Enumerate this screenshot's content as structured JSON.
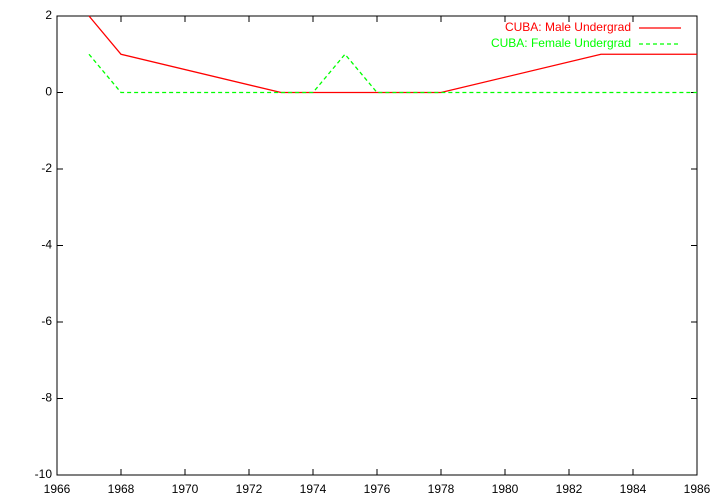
{
  "chart_data": {
    "type": "line",
    "x": [
      1967,
      1968,
      1973,
      1974,
      1975,
      1976,
      1977,
      1978,
      1983,
      1984,
      1985,
      1986
    ],
    "series": [
      {
        "name": "CUBA: Male Undergrad",
        "color": "#ff0000",
        "dash": false,
        "values": [
          2,
          1,
          0,
          0,
          0,
          0,
          0,
          0,
          1,
          1,
          1,
          1
        ]
      },
      {
        "name": "CUBA: Female Undergrad",
        "color": "#00ff00",
        "dash": true,
        "values": [
          1,
          0,
          0,
          0,
          1,
          0,
          0,
          0,
          0,
          0,
          0,
          0
        ]
      }
    ],
    "xlim": [
      1966,
      1986
    ],
    "xticks": [
      1966,
      1968,
      1970,
      1972,
      1974,
      1976,
      1978,
      1980,
      1982,
      1984,
      1986
    ],
    "ylim": [
      -10,
      2
    ],
    "yticks": [
      -10,
      -8,
      -6,
      -4,
      -2,
      0,
      2
    ],
    "legend": "top-right"
  }
}
